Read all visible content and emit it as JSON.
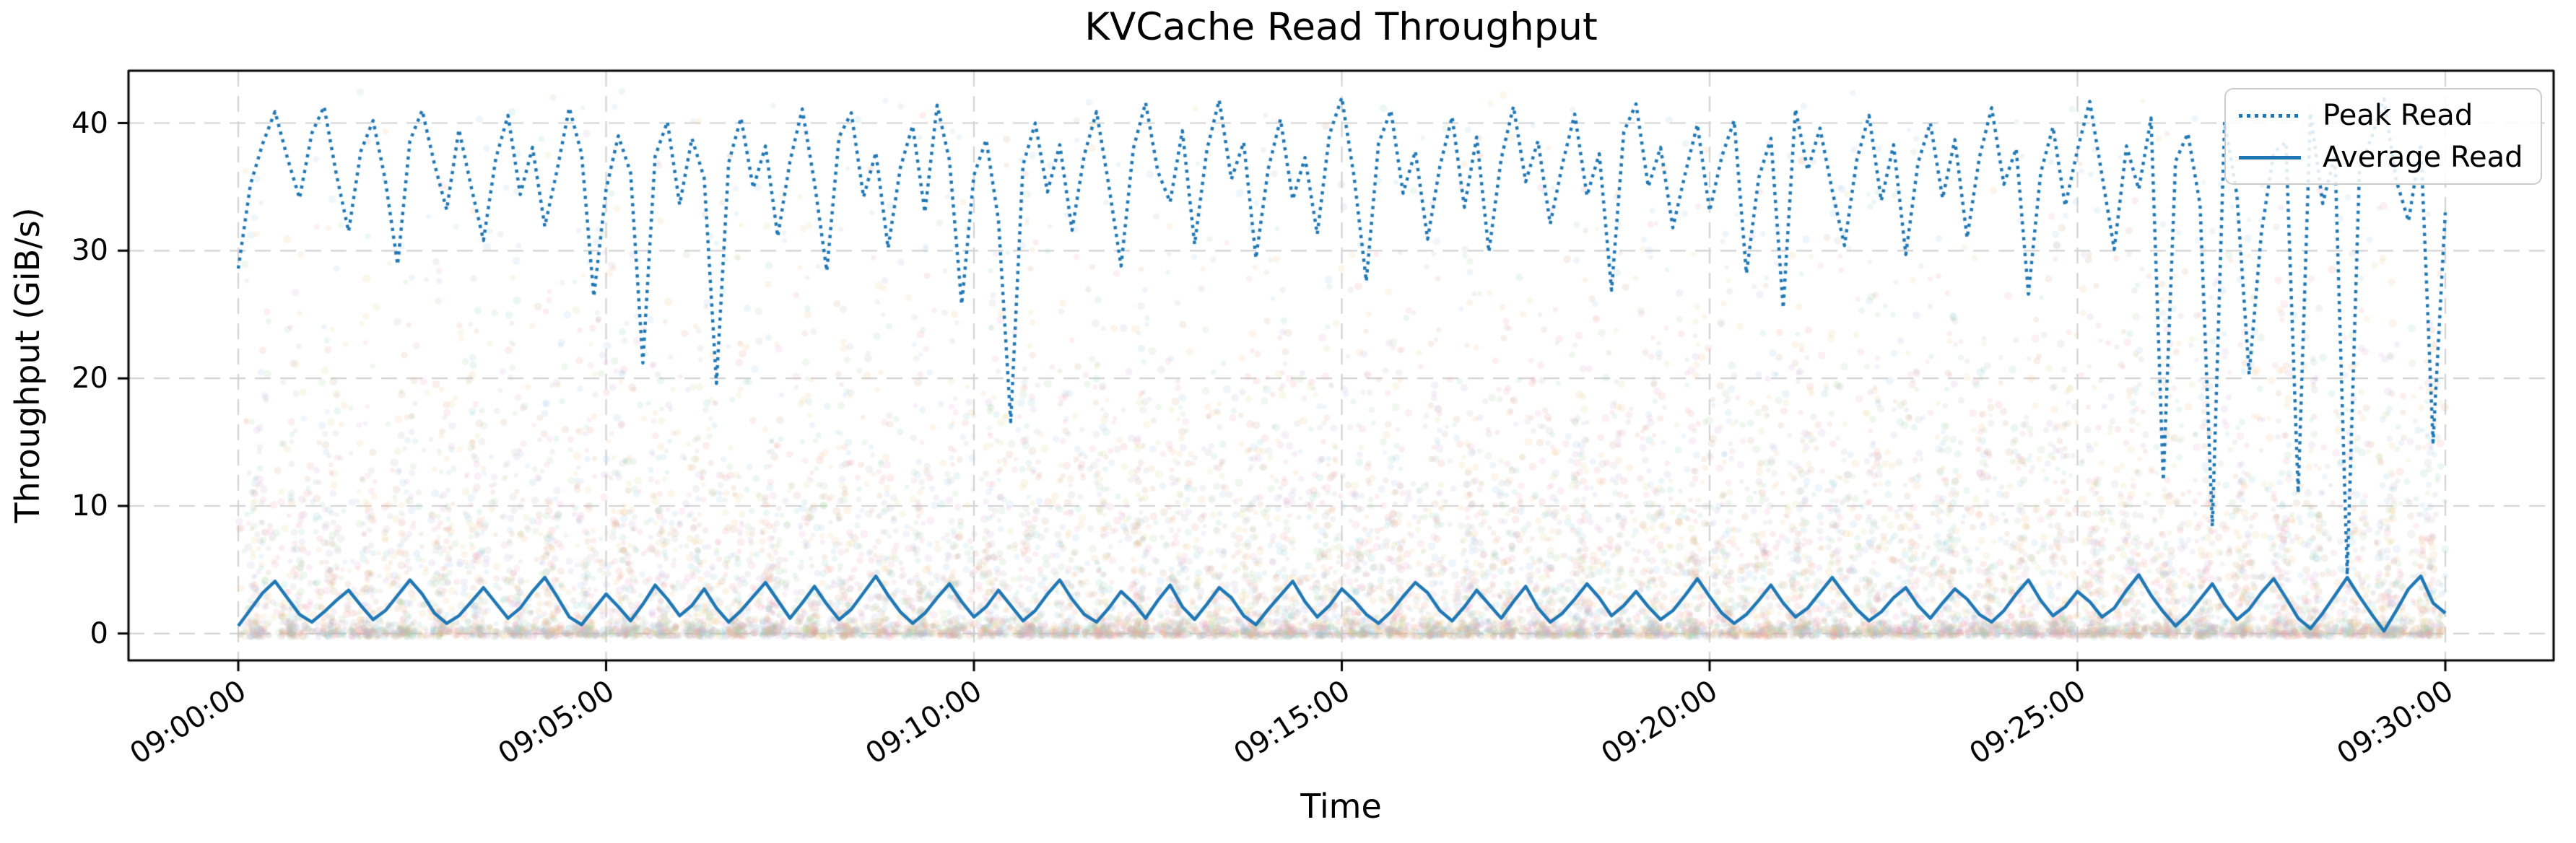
{
  "chart": {
    "accent_color": "#1f77b4",
    "grid_color": "#d3d3d3",
    "spine_color": "#000000"
  },
  "chart_data": {
    "type": "line",
    "title": "KVCache Read Throughput",
    "xlabel": "Time",
    "ylabel": "Throughput (GiB/s)",
    "grid": true,
    "legend_position": "upper right",
    "ylim": [
      -2.1,
      44.1
    ],
    "yticks": [
      {
        "v": 0,
        "label": "0"
      },
      {
        "v": 10,
        "label": "10"
      },
      {
        "v": 20,
        "label": "20"
      },
      {
        "v": 30,
        "label": "30"
      },
      {
        "v": 40,
        "label": "40"
      }
    ],
    "xticks": [
      {
        "seconds": 0,
        "label": "09:00:00"
      },
      {
        "seconds": 300,
        "label": "09:05:00"
      },
      {
        "seconds": 600,
        "label": "09:10:00"
      },
      {
        "seconds": 900,
        "label": "09:15:00"
      },
      {
        "seconds": 1200,
        "label": "09:20:00"
      },
      {
        "seconds": 1500,
        "label": "09:25:00"
      },
      {
        "seconds": 1800,
        "label": "09:30:00"
      }
    ],
    "x_start_label": "09:00:00",
    "x_end_label": "09:30:00",
    "x_step_seconds": 10,
    "series": [
      {
        "name": "Peak Read",
        "style": "dotted",
        "color": "#1f77b4",
        "linewidth": 4.5,
        "values": [
          28.6,
          35.2,
          38.4,
          40.9,
          37.3,
          34.1,
          39.2,
          41.3,
          36.0,
          31.5,
          37.8,
          40.2,
          35.5,
          28.9,
          38.6,
          41.0,
          36.8,
          33.2,
          39.5,
          35.0,
          30.8,
          37.2,
          40.6,
          34.4,
          38.1,
          31.9,
          36.3,
          41.2,
          37.6,
          26.4,
          34.8,
          39.0,
          36.1,
          21.2,
          37.4,
          40.1,
          33.6,
          38.8,
          35.7,
          19.6,
          36.9,
          40.4,
          34.9,
          38.2,
          31.1,
          37.0,
          41.1,
          35.3,
          28.4,
          38.9,
          40.8,
          34.2,
          37.7,
          30.2,
          36.5,
          39.8,
          33.0,
          41.4,
          37.1,
          25.8,
          35.9,
          38.7,
          32.4,
          16.6,
          36.7,
          40.0,
          34.6,
          38.3,
          31.6,
          37.5,
          40.9,
          35.1,
          28.8,
          38.0,
          41.6,
          36.2,
          33.8,
          39.4,
          30.5,
          37.9,
          41.8,
          35.6,
          38.5,
          29.4,
          36.4,
          40.3,
          34.0,
          37.3,
          31.3,
          39.1,
          42.0,
          35.8,
          27.6,
          38.4,
          41.0,
          34.5,
          37.8,
          30.9,
          36.6,
          40.5,
          33.4,
          38.9,
          29.9,
          37.2,
          41.3,
          35.4,
          38.6,
          32.1,
          36.8,
          40.7,
          34.3,
          37.6,
          26.9,
          39.3,
          41.5,
          35.0,
          38.1,
          31.8,
          36.0,
          39.9,
          33.1,
          37.4,
          40.2,
          28.2,
          35.7,
          38.8,
          25.5,
          41.1,
          36.3,
          39.6,
          34.7,
          30.4,
          37.1,
          40.6,
          33.9,
          38.3,
          29.7,
          36.9,
          40.0,
          34.1,
          38.7,
          31.0,
          37.3,
          41.2,
          35.2,
          38.0,
          26.6,
          36.1,
          39.7,
          33.5,
          37.9,
          41.7,
          35.9,
          30.1,
          38.2,
          34.8,
          40.4,
          12.0,
          37.0,
          39.2,
          33.6,
          8.4,
          40.1,
          34.4,
          20.3,
          31.4,
          37.7,
          38.5,
          11.0,
          40.8,
          33.7,
          37.5,
          4.6,
          36.5,
          38.9,
          41.9,
          35.5,
          32.3,
          38.4,
          15.0,
          33.0
        ]
      },
      {
        "name": "Average Read",
        "style": "solid",
        "color": "#1f77b4",
        "linewidth": 4.5,
        "values": [
          0.6,
          1.9,
          3.2,
          4.1,
          2.8,
          1.5,
          0.9,
          1.7,
          2.6,
          3.4,
          2.2,
          1.1,
          1.8,
          3.0,
          4.2,
          3.1,
          1.6,
          0.8,
          1.4,
          2.5,
          3.6,
          2.4,
          1.2,
          2.0,
          3.3,
          4.4,
          2.9,
          1.3,
          0.7,
          1.9,
          3.1,
          2.1,
          1.0,
          2.3,
          3.8,
          2.7,
          1.4,
          2.2,
          3.5,
          2.0,
          0.9,
          1.8,
          2.9,
          4.0,
          2.6,
          1.2,
          2.4,
          3.7,
          2.3,
          1.1,
          1.9,
          3.2,
          4.5,
          3.0,
          1.7,
          0.8,
          1.6,
          2.8,
          3.9,
          2.5,
          1.3,
          2.1,
          3.4,
          2.2,
          1.0,
          1.8,
          3.1,
          4.2,
          2.7,
          1.5,
          0.9,
          2.0,
          3.3,
          2.4,
          1.2,
          2.6,
          3.8,
          2.1,
          1.1,
          2.3,
          3.6,
          2.8,
          1.4,
          0.7,
          1.9,
          3.0,
          4.1,
          2.5,
          1.3,
          2.2,
          3.5,
          2.6,
          1.5,
          0.8,
          1.7,
          2.9,
          4.0,
          3.2,
          1.8,
          1.0,
          2.1,
          3.4,
          2.3,
          1.2,
          2.5,
          3.7,
          2.0,
          0.9,
          1.6,
          2.7,
          3.9,
          2.8,
          1.4,
          2.2,
          3.3,
          2.1,
          1.1,
          1.8,
          3.0,
          4.3,
          2.9,
          1.6,
          0.8,
          1.5,
          2.6,
          3.8,
          2.4,
          1.3,
          2.0,
          3.2,
          4.4,
          3.1,
          1.9,
          1.0,
          1.7,
          2.8,
          3.6,
          2.2,
          1.2,
          2.4,
          3.5,
          2.7,
          1.5,
          0.9,
          1.8,
          3.1,
          4.2,
          2.6,
          1.4,
          2.1,
          3.3,
          2.5,
          1.3,
          2.0,
          3.4,
          4.6,
          3.0,
          1.7,
          0.6,
          1.5,
          2.7,
          3.9,
          2.3,
          1.1,
          1.9,
          3.2,
          4.3,
          2.8,
          1.2,
          0.4,
          1.6,
          3.0,
          4.4,
          2.9,
          1.5,
          0.2,
          1.8,
          3.5,
          4.5,
          2.4,
          1.6
        ]
      }
    ],
    "background_scatter": {
      "description": "translucent multicolor noise cloud, dense band near 0 GiB/s, thinning toward 42 GiB/s",
      "seed": 1337,
      "count": 13500,
      "alpha": 0.18,
      "radius_px": [
        3,
        5.6
      ],
      "y_range": [
        -1.1,
        42.5
      ],
      "bottom_band_fraction": 0.36,
      "exp_mean": 9.2,
      "high_blue_bias": 0.4,
      "cluster_fraction": 0.45,
      "cluster_period_s": 30,
      "cluster_sigma_s": 5,
      "palette": [
        "#f2a0a0",
        "#f5c08c",
        "#a8d5a2",
        "#9ec9e8",
        "#cdb4de",
        "#f0a8c8",
        "#bdbdbd",
        "#8fd3cf",
        "#e6d690",
        "#d4a98c"
      ],
      "high_blue_color": "#a9cce3"
    }
  }
}
